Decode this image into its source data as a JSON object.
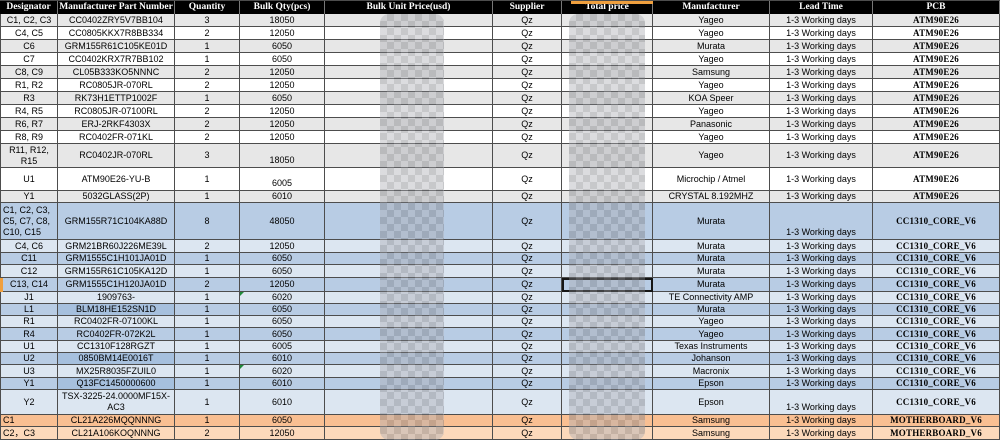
{
  "table": {
    "columns": [
      "Designator",
      "Manufacturer Part Number",
      "Quantity",
      "Bulk Qty(pcs)",
      "Bulk Unit Price(usd)",
      "Supplier",
      "Total price",
      "Manufacturer",
      "Lead Time",
      "PCB"
    ],
    "censored_columns": [
      "Bulk Unit Price(usd)",
      "Total price"
    ],
    "rows": [
      {
        "designator": "C1, C2, C3",
        "part_number": "CC0402ZRY5V7BB104",
        "quantity": "3",
        "bulk_qty": "18050",
        "unit_price": "",
        "supplier": "Qz",
        "total_price": "",
        "manufacturer": "Yageo",
        "lead_time": "1-3 Working days",
        "pcb": "ATM90E26",
        "band": "gray"
      },
      {
        "designator": "C4, C5",
        "part_number": "CC0805KKX7R8BB334",
        "quantity": "2",
        "bulk_qty": "12050",
        "unit_price": "",
        "supplier": "Qz",
        "total_price": "",
        "manufacturer": "Yageo",
        "lead_time": "1-3 Working days",
        "pcb": "ATM90E26",
        "band": "white"
      },
      {
        "designator": "C6",
        "part_number": "GRM155R61C105KE01D",
        "quantity": "1",
        "bulk_qty": "6050",
        "unit_price": "",
        "supplier": "Qz",
        "total_price": "",
        "manufacturer": "Murata",
        "lead_time": "1-3 Working days",
        "pcb": "ATM90E26",
        "band": "gray"
      },
      {
        "designator": "C7",
        "part_number": "CC0402KRX7R7BB102",
        "quantity": "1",
        "bulk_qty": "6050",
        "unit_price": "",
        "supplier": "Qz",
        "total_price": "",
        "manufacturer": "Yageo",
        "lead_time": "1-3 Working days",
        "pcb": "ATM90E26",
        "band": "white"
      },
      {
        "designator": "C8, C9",
        "part_number": "CL05B333KO5NNNC",
        "quantity": "2",
        "bulk_qty": "12050",
        "unit_price": "",
        "supplier": "Qz",
        "total_price": "",
        "manufacturer": "Samsung",
        "lead_time": "1-3 Working days",
        "pcb": "ATM90E26",
        "band": "gray"
      },
      {
        "designator": "R1, R2",
        "part_number": "RC0805JR-070RL",
        "quantity": "2",
        "bulk_qty": "12050",
        "unit_price": "",
        "supplier": "Qz",
        "total_price": "",
        "manufacturer": "Yageo",
        "lead_time": "1-3 Working days",
        "pcb": "ATM90E26",
        "band": "white"
      },
      {
        "designator": "R3",
        "part_number": "RK73H1ETTP1002F",
        "quantity": "1",
        "bulk_qty": "6050",
        "unit_price": "",
        "supplier": "Qz",
        "total_price": "",
        "manufacturer": "KOA Speer",
        "lead_time": "1-3 Working days",
        "pcb": "ATM90E26",
        "band": "gray"
      },
      {
        "designator": "R4, R5",
        "part_number": "RC0805JR-07100RL",
        "quantity": "2",
        "bulk_qty": "12050",
        "unit_price": "",
        "supplier": "Qz",
        "total_price": "",
        "manufacturer": "Yageo",
        "lead_time": "1-3 Working days",
        "pcb": "ATM90E26",
        "band": "white"
      },
      {
        "designator": "R6, R7",
        "part_number": "ERJ-2RKF4303X",
        "quantity": "2",
        "bulk_qty": "12050",
        "unit_price": "",
        "supplier": "Qz",
        "total_price": "",
        "manufacturer": "Panasonic",
        "lead_time": "1-3 Working days",
        "pcb": "ATM90E26",
        "band": "gray"
      },
      {
        "designator": "R8, R9",
        "part_number": "RC0402FR-071KL",
        "quantity": "2",
        "bulk_qty": "12050",
        "unit_price": "",
        "supplier": "Qz",
        "total_price": "",
        "manufacturer": "Yageo",
        "lead_time": "1-3 Working days",
        "pcb": "ATM90E26",
        "band": "white"
      },
      {
        "designator": "R11, R12, R15",
        "part_number": "RC0402JR-070RL",
        "quantity": "3",
        "bulk_qty": "18050",
        "unit_price": "",
        "supplier": "Qz",
        "total_price": "",
        "manufacturer": "Yageo",
        "lead_time": "1-3 Working days",
        "pcb": "ATM90E26",
        "band": "gray",
        "bulk_bottom": true
      },
      {
        "designator": "U1",
        "part_number": "ATM90E26-YU-B",
        "quantity": "1",
        "bulk_qty": "6005",
        "unit_price": "",
        "supplier": "Qz",
        "total_price": "",
        "manufacturer": "Microchip / Atmel",
        "lead_time": "1-3 Working days",
        "pcb": "ATM90E26",
        "band": "white",
        "bulk_bottom": true
      },
      {
        "designator": "Y1",
        "part_number": "5032GLASS(2P)",
        "quantity": "1",
        "bulk_qty": "6010",
        "unit_price": "",
        "supplier": "Qz",
        "total_price": "",
        "manufacturer": "CRYSTAL 8.192MHZ",
        "lead_time": "1-3 Working days",
        "pcb": "ATM90E26",
        "band": "gray"
      },
      {
        "designator": "C1, C2, C3, C5, C7, C8, C10, C15",
        "part_number": "GRM155R71C104KA88D",
        "quantity": "8",
        "bulk_qty": "48050",
        "unit_price": "",
        "supplier": "Qz",
        "total_price": "",
        "manufacturer": "Murata",
        "lead_time": "1-3 Working days",
        "pcb": "CC1310_CORE_V6",
        "band": "blue_med",
        "des_left": true,
        "lead_bottom": true
      },
      {
        "designator": "C4, C6",
        "part_number": "GRM21BR60J226ME39L",
        "quantity": "2",
        "bulk_qty": "12050",
        "unit_price": "",
        "supplier": "Qz",
        "total_price": "",
        "manufacturer": "Murata",
        "lead_time": "1-3 Working days",
        "pcb": "CC1310_CORE_V6",
        "band": "blue_light"
      },
      {
        "designator": "C11",
        "part_number": "GRM1555C1H101JA01D",
        "quantity": "1",
        "bulk_qty": "6050",
        "unit_price": "",
        "supplier": "Qz",
        "total_price": "",
        "manufacturer": "Murata",
        "lead_time": "1-3 Working days",
        "pcb": "CC1310_CORE_V6",
        "band": "blue_med"
      },
      {
        "designator": "C12",
        "part_number": "GRM155R61C105KA12D",
        "quantity": "1",
        "bulk_qty": "6050",
        "unit_price": "",
        "supplier": "Qz",
        "total_price": "",
        "manufacturer": "Murata",
        "lead_time": "1-3 Working days",
        "pcb": "CC1310_CORE_V6",
        "band": "blue_light"
      },
      {
        "designator": "C13, C14",
        "part_number": "GRM1555C1H120JA01D",
        "quantity": "2",
        "bulk_qty": "12050",
        "unit_price": "",
        "supplier": "Qz",
        "total_price": "",
        "manufacturer": "Murata",
        "lead_time": "1-3 Working days",
        "pcb": "CC1310_CORE_V6",
        "band": "blue_med",
        "selected_total": true,
        "left_marker": true
      },
      {
        "designator": "J1",
        "part_number": "1909763-",
        "quantity": "1",
        "bulk_qty": "6020",
        "unit_price": "",
        "supplier": "Qz",
        "total_price": "",
        "manufacturer": "TE Connectivity AMP",
        "lead_time": "1-3 Working days",
        "pcb": "CC1310_CORE_V6",
        "band": "blue_light",
        "bulk_error": true
      },
      {
        "designator": "L1",
        "part_number": "BLM18HE152SN1D",
        "quantity": "1",
        "bulk_qty": "6050",
        "unit_price": "",
        "supplier": "Qz",
        "total_price": "",
        "manufacturer": "Murata",
        "lead_time": "1-3 Working days",
        "pcb": "CC1310_CORE_V6",
        "band": "blue_med",
        "pn_dark": true
      },
      {
        "designator": "R1",
        "part_number": "RC0402FR-07100KL",
        "quantity": "1",
        "bulk_qty": "6050",
        "unit_price": "",
        "supplier": "Qz",
        "total_price": "",
        "manufacturer": "Yageo",
        "lead_time": "1-3 Working days",
        "pcb": "CC1310_CORE_V6",
        "band": "blue_light"
      },
      {
        "designator": "R4",
        "part_number": "RC0402FR-072K2L",
        "quantity": "1",
        "bulk_qty": "6050",
        "unit_price": "",
        "supplier": "Qz",
        "total_price": "",
        "manufacturer": "Yageo",
        "lead_time": "1-3 Working days",
        "pcb": "CC1310_CORE_V6",
        "band": "blue_med"
      },
      {
        "designator": "U1",
        "part_number": "CC1310F128RGZT",
        "quantity": "1",
        "bulk_qty": "6005",
        "unit_price": "",
        "supplier": "Qz",
        "total_price": "",
        "manufacturer": "Texas Instruments",
        "lead_time": "1-3 Working days",
        "pcb": "CC1310_CORE_V6",
        "band": "blue_light"
      },
      {
        "designator": "U2",
        "part_number": "0850BM14E0016T",
        "quantity": "1",
        "bulk_qty": "6010",
        "unit_price": "",
        "supplier": "Qz",
        "total_price": "",
        "manufacturer": "Johanson",
        "lead_time": "1-3 Working days",
        "pcb": "CC1310_CORE_V6",
        "band": "blue_med",
        "pn_dark": true
      },
      {
        "designator": "U3",
        "part_number": "MX25R8035FZUIL0",
        "quantity": "1",
        "bulk_qty": "6020",
        "unit_price": "",
        "supplier": "Qz",
        "total_price": "",
        "manufacturer": "Macronix",
        "lead_time": "1-3 Working days",
        "pcb": "CC1310_CORE_V6",
        "band": "blue_light",
        "bulk_error": true
      },
      {
        "designator": "Y1",
        "part_number": "Q13FC1450000600",
        "quantity": "1",
        "bulk_qty": "6010",
        "unit_price": "",
        "supplier": "Qz",
        "total_price": "",
        "manufacturer": "Epson",
        "lead_time": "1-3 Working days",
        "pcb": "CC1310_CORE_V6",
        "band": "blue_med",
        "pn_dark": true
      },
      {
        "designator": "Y2",
        "part_number": "TSX-3225-24.0000MF15X-AC3",
        "quantity": "1",
        "bulk_qty": "6010",
        "unit_price": "",
        "supplier": "Qz",
        "total_price": "",
        "manufacturer": "Epson",
        "lead_time": "1-3 Working days",
        "pcb": "CC1310_CORE_V6",
        "band": "blue_light",
        "lead_bottom": true
      },
      {
        "designator": "C1",
        "part_number": "CL21A226MQQNNNG",
        "quantity": "1",
        "bulk_qty": "6050",
        "unit_price": "",
        "supplier": "Qz",
        "total_price": "",
        "manufacturer": "Samsung",
        "lead_time": "1-3 Working days",
        "pcb": "MOTHERBOARD_V6",
        "band": "orange_dark",
        "des_left": true
      },
      {
        "designator": "C2，C3",
        "part_number": "CL21A106KOQNNNG",
        "quantity": "2",
        "bulk_qty": "12050",
        "unit_price": "",
        "supplier": "Qz",
        "total_price": "",
        "manufacturer": "Samsung",
        "lead_time": "1-3 Working days",
        "pcb": "MOTHERBOARD_V6",
        "band": "orange_light",
        "des_left": true
      }
    ]
  },
  "palette": {
    "header_bg": "#000000",
    "header_text": "#ffffff",
    "gray": "#e7e7e7",
    "white": "#ffffff",
    "blue_med": "#b8cce4",
    "blue_light": "#dce6f1",
    "pn_dark": "#a6c0de",
    "orange_dark": "#f9bf92",
    "orange_light": "#fcd9bb",
    "accent_orange": "#ef9f3e",
    "error_green": "#1f8a3b",
    "gridline": "#4d4d4d"
  }
}
